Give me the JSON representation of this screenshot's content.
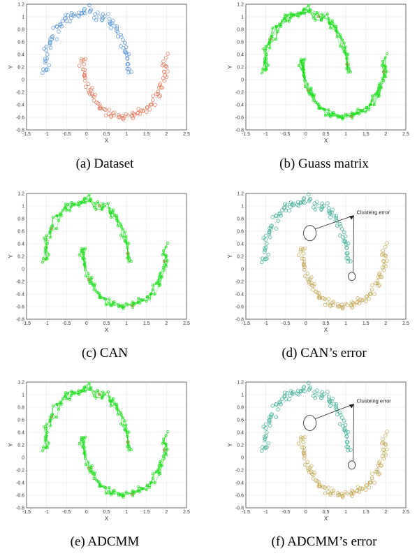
{
  "figure": {
    "panels": [
      {
        "caption": "(a) Dataset",
        "kind": "scatter"
      },
      {
        "caption": "(b) Guass matrix",
        "kind": "graph"
      },
      {
        "caption": "(c) CAN",
        "kind": "graph"
      },
      {
        "caption": "(d) CAN’s error",
        "kind": "error",
        "annotation": "Clusteirg error"
      },
      {
        "caption": "(e) ADCMM",
        "kind": "graph"
      },
      {
        "caption": "(f) ADCMM’s error",
        "kind": "error",
        "annotation": "Clusteing error"
      }
    ]
  },
  "colors": {
    "class1": "#4d8fd6",
    "class2": "#e07050",
    "edges": "#22dd22",
    "cluster1_error": "#3aa89a",
    "cluster2_error": "#c8a050",
    "grid": "#e6e6e6",
    "axis": "#333333"
  },
  "chart_data": [
    {
      "type": "scatter",
      "title": "",
      "xlabel": "X",
      "ylabel": "Y",
      "xlim": [
        -1.5,
        2.5
      ],
      "ylim": [
        -0.8,
        1.2
      ],
      "xticks": [
        "-1.5",
        "-1",
        "-0.5",
        "0",
        "0.5",
        "1",
        "1.5",
        "2",
        "2.5"
      ],
      "yticks": [
        "-0.8",
        "-0.6",
        "-0.4",
        "-0.2",
        "0",
        "0.2",
        "0.4",
        "0.6",
        "0.8",
        "1",
        "1.2"
      ],
      "grid": true,
      "marker": "open circle",
      "series": [
        {
          "shape": "upper moon",
          "color": "#4d8fd6",
          "x_range": [
            -1.2,
            1.2
          ],
          "y_range": [
            0.0,
            1.2
          ],
          "points": 100
        },
        {
          "shape": "lower moon",
          "color": "#e07050",
          "x_range": [
            -0.1,
            2.1
          ],
          "y_range": [
            -0.65,
            0.45
          ],
          "points": 100
        }
      ]
    },
    {
      "type": "scatter",
      "xlabel": "X",
      "ylabel": "Y",
      "xlim": [
        -1.5,
        2.5
      ],
      "ylim": [
        -0.8,
        1.2
      ],
      "grid": true,
      "edges": "full graph across both moons"
    },
    {
      "type": "scatter",
      "xlabel": "X",
      "ylabel": "Y",
      "xlim": [
        -1.5,
        2.5
      ],
      "ylim": [
        -0.8,
        1.2
      ],
      "grid": true,
      "edges": "graph within each moon"
    },
    {
      "type": "scatter",
      "xlabel": "X",
      "ylabel": "Y",
      "xlim": [
        -1.5,
        2.5
      ],
      "ylim": [
        -0.8,
        1.2
      ],
      "grid": true,
      "errors": [
        {
          "x": 0.1,
          "y": 0.57
        },
        {
          "x": 1.15,
          "y": -0.12
        }
      ],
      "annotation_target": {
        "x": 1.2,
        "y": 0.85
      }
    },
    {
      "type": "scatter",
      "xlabel": "X",
      "ylabel": "Y",
      "xlim": [
        -1.5,
        2.5
      ],
      "ylim": [
        -0.8,
        1.2
      ],
      "grid": true,
      "edges": "graph within each moon"
    },
    {
      "type": "scatter",
      "xlabel": "X",
      "ylabel": "Y",
      "xlim": [
        -1.5,
        2.5
      ],
      "ylim": [
        -0.8,
        1.2
      ],
      "grid": true,
      "errors": [
        {
          "x": 0.1,
          "y": 0.55
        },
        {
          "x": 1.15,
          "y": -0.12
        }
      ],
      "annotation_target": {
        "x": 1.2,
        "y": 0.85
      }
    }
  ]
}
